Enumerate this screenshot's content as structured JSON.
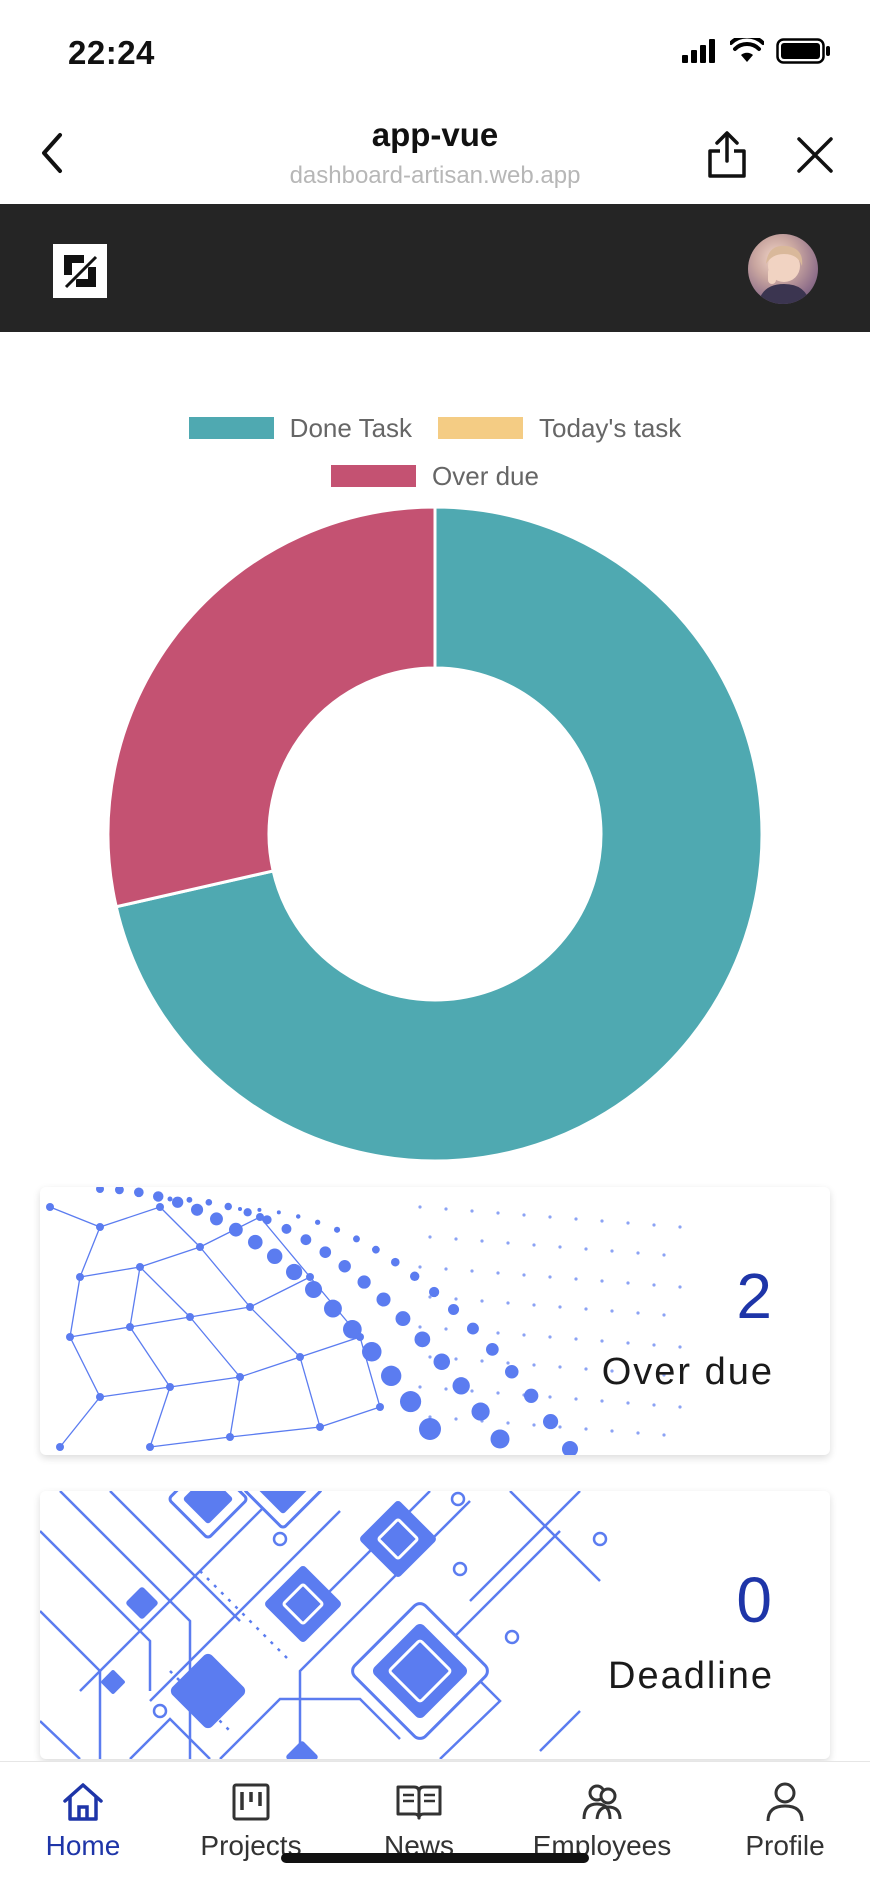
{
  "status_bar": {
    "time": "22:24"
  },
  "browser": {
    "title": "app-vue",
    "url": "dashboard-artisan.web.app"
  },
  "chart_data": {
    "type": "pie",
    "legend": [
      {
        "label": "Done Task",
        "color": "#4fa9b1"
      },
      {
        "label": "Today's task",
        "color": "#f4cc84"
      },
      {
        "label": "Over due",
        "color": "#c45272"
      }
    ],
    "categories": [
      "Done Task",
      "Today's task",
      "Over due"
    ],
    "values": [
      5,
      0,
      2
    ],
    "legend_position": "top",
    "donut": true
  },
  "cards": [
    {
      "value": "2",
      "label": "Over due"
    },
    {
      "value": "0",
      "label": "Deadline"
    }
  ],
  "tabs": [
    {
      "label": "Home",
      "icon": "home-icon",
      "active": true
    },
    {
      "label": "Projects",
      "icon": "projects-icon"
    },
    {
      "label": "News",
      "icon": "news-icon"
    },
    {
      "label": "Employees",
      "icon": "employees-icon"
    },
    {
      "label": "Profile",
      "icon": "profile-icon"
    }
  ],
  "colors": {
    "accent": "#1e35a8",
    "header_bg": "#252525",
    "pattern": "#5b7cf0"
  }
}
